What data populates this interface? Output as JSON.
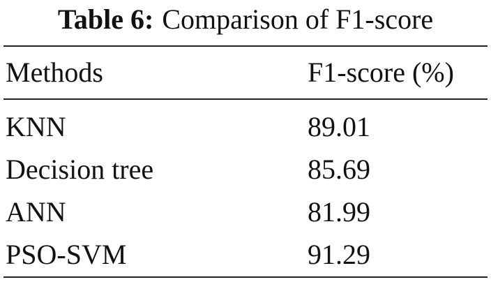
{
  "caption": {
    "label": "Table 6:",
    "text": "Comparison of F1-score"
  },
  "table": {
    "header": [
      "Methods",
      "F1-score (%)"
    ],
    "rows": [
      [
        "KNN",
        89.01
      ],
      [
        "Decision tree",
        85.69
      ],
      [
        "ANN",
        81.99
      ],
      [
        "PSO-SVM",
        91.29
      ]
    ]
  }
}
